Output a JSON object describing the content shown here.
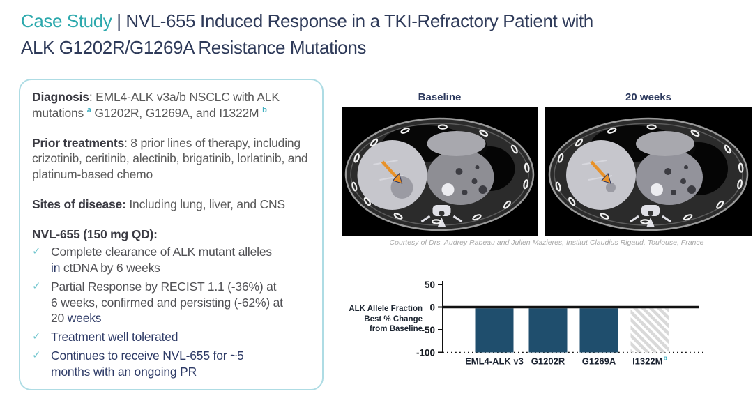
{
  "title": {
    "highlight": "Case Study",
    "separator": " | ",
    "rest_line1": "NVL-655 Induced Response in a TKI-Refractory Patient with",
    "rest_line2": "ALK G1202R/G1269A Resistance Mutations"
  },
  "panel": {
    "diagnosis": {
      "label": "Diagnosis",
      "text_before_sup_a": ": EML4-ALK v3a/b NSCLC with ALK mutations ",
      "sup_a": "a",
      "text_after_sup_a": " G1202R, G1269A, and I1322M ",
      "sup_b": "b"
    },
    "prior": {
      "label": "Prior treatments",
      "text": ": 8 prior lines of therapy, including crizotinib, ceritinib, alectinib, brigatinib, lorlatinib, and platinum-based chemo"
    },
    "sites": {
      "label": "Sites of disease:",
      "text": " Including lung, liver, and CNS"
    },
    "nvl": {
      "label": "NVL-655 (150 mg QD):",
      "check_glyph": "✓",
      "items": [
        {
          "segments": [
            {
              "t": "Complete clearance of ALK mutant alleles ",
              "c": "gray"
            },
            {
              "t": "in",
              "c": "navy"
            },
            {
              "t": " ctDNA by 6 weeks",
              "c": "gray"
            }
          ]
        },
        {
          "segments": [
            {
              "t": "Partial Response by RECIST 1.1 (-36%) at 6 weeks, confirmed and persisting (-62%) at 20 ",
              "c": "gray"
            },
            {
              "t": "weeks",
              "c": "navy"
            }
          ]
        },
        {
          "segments": [
            {
              "t": "Treatment well tolerated",
              "c": "navy"
            }
          ]
        },
        {
          "segments": [
            {
              "t": "Continues to receive NVL-655 for ~5 months with an ongoing PR",
              "c": "navy"
            }
          ]
        }
      ]
    }
  },
  "scans": {
    "baseline_label": "Baseline",
    "week20_label": "20 weeks",
    "caption": "Courtesy of Drs. Audrey Rabeau and Julien Mazieres, Institut Claudius Rigaud, Toulouse, France"
  },
  "chart_data": {
    "type": "bar",
    "ylabel_lines": [
      "ALK Allele Fraction",
      "Best % Change",
      "from Baseline"
    ],
    "categories": [
      "EML4-ALK v3",
      "G1202R",
      "G1269A",
      "I1322M"
    ],
    "category_superscripts": [
      "",
      "",
      "",
      "b"
    ],
    "values": [
      -100,
      -100,
      -100,
      -100
    ],
    "bar_styles": [
      "solid",
      "solid",
      "solid",
      "hatched"
    ],
    "yticks": [
      50,
      0,
      -50,
      -100
    ],
    "ylim": [
      -100,
      50
    ],
    "grid": "off",
    "zero_baseline": true,
    "dotted_line_at": -100,
    "bar_color": "#1F4E6D",
    "hatch_color": "#D9D9D9"
  },
  "colors": {
    "accent_teal": "#2DA9AD",
    "title_navy": "#2E3A59",
    "body_gray": "#595959",
    "bullet_navy": "#2D3A66",
    "label_dark": "#3A3A42",
    "panel_border": "#AEDCE4",
    "checkmark_teal": "#6FC5CE",
    "superscript_teal": "#3FAEBF",
    "caption_gray": "#A8A8A8",
    "arrow_orange": "#E8922A"
  }
}
